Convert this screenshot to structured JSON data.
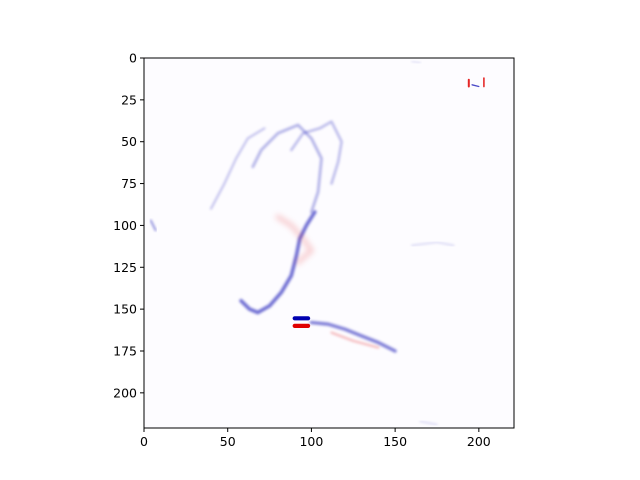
{
  "chart_data": {
    "type": "heatmap",
    "title": "",
    "xlabel": "",
    "ylabel": "",
    "xlim": [
      0,
      221
    ],
    "ylim": [
      221,
      0
    ],
    "colormap": "bwr",
    "colors": {
      "negative": "#0000b0",
      "positive": "#e00000",
      "neutral": "#ffffff",
      "axis": "#000000"
    },
    "x_ticks": [
      {
        "value": 0,
        "label": "0"
      },
      {
        "value": 50,
        "label": "50"
      },
      {
        "value": 100,
        "label": "100"
      },
      {
        "value": 150,
        "label": "150"
      },
      {
        "value": 200,
        "label": "200"
      }
    ],
    "y_ticks": [
      {
        "value": 0,
        "label": "0"
      },
      {
        "value": 25,
        "label": "25"
      },
      {
        "value": 50,
        "label": "50"
      },
      {
        "value": 75,
        "label": "75"
      },
      {
        "value": 100,
        "label": "100"
      },
      {
        "value": 125,
        "label": "125"
      },
      {
        "value": 150,
        "label": "150"
      },
      {
        "value": 175,
        "label": "175"
      },
      {
        "value": 200,
        "label": "200"
      }
    ],
    "features": [
      {
        "name": "strong-negative-patch",
        "sign": "negative",
        "intensity": 1.0,
        "points": [
          [
            90,
            155.5
          ],
          [
            98,
            155.5
          ]
        ],
        "width": 2.5
      },
      {
        "name": "strong-positive-patch",
        "sign": "positive",
        "intensity": 1.0,
        "points": [
          [
            90,
            160
          ],
          [
            98,
            160
          ]
        ],
        "width": 2.5
      },
      {
        "name": "top-right-positive-marks",
        "sign": "positive",
        "intensity": 0.85,
        "points": [
          [
            194,
            13
          ],
          [
            194,
            17
          ]
        ],
        "width": 1.2
      },
      {
        "name": "top-right-positive-marks-2",
        "sign": "positive",
        "intensity": 0.8,
        "points": [
          [
            203,
            12
          ],
          [
            203,
            17
          ]
        ],
        "width": 1.0
      },
      {
        "name": "top-right-blue-speck",
        "sign": "negative",
        "intensity": 0.7,
        "points": [
          [
            196,
            16
          ],
          [
            200,
            17
          ]
        ],
        "width": 0.8
      },
      {
        "name": "curved-blue-stroke",
        "sign": "negative",
        "intensity": 0.55,
        "points": [
          [
            58,
            145
          ],
          [
            63,
            150
          ],
          [
            68,
            152
          ],
          [
            75,
            148
          ],
          [
            82,
            140
          ],
          [
            88,
            130
          ],
          [
            91,
            118
          ],
          [
            93,
            108
          ],
          [
            97,
            100
          ],
          [
            102,
            92
          ]
        ],
        "width": 2.2
      },
      {
        "name": "upper-blue-curves",
        "sign": "negative",
        "intensity": 0.3,
        "points": [
          [
            65,
            65
          ],
          [
            70,
            55
          ],
          [
            80,
            45
          ],
          [
            92,
            40
          ],
          [
            100,
            48
          ],
          [
            106,
            60
          ],
          [
            104,
            80
          ],
          [
            100,
            92
          ]
        ],
        "width": 1.6
      },
      {
        "name": "upper-blue-curves-2",
        "sign": "negative",
        "intensity": 0.28,
        "points": [
          [
            88,
            55
          ],
          [
            95,
            45
          ],
          [
            105,
            42
          ],
          [
            112,
            38
          ],
          [
            118,
            50
          ],
          [
            116,
            62
          ],
          [
            112,
            75
          ]
        ],
        "width": 1.4
      },
      {
        "name": "upper-blue-left-lobe",
        "sign": "negative",
        "intensity": 0.25,
        "points": [
          [
            40,
            90
          ],
          [
            48,
            75
          ],
          [
            55,
            60
          ],
          [
            62,
            48
          ],
          [
            72,
            42
          ]
        ],
        "width": 1.2
      },
      {
        "name": "lower-blue-streak",
        "sign": "negative",
        "intensity": 0.5,
        "points": [
          [
            100,
            158
          ],
          [
            110,
            159
          ],
          [
            120,
            162
          ],
          [
            130,
            166
          ],
          [
            140,
            170
          ],
          [
            150,
            175
          ]
        ],
        "width": 2.0
      },
      {
        "name": "lower-red-streak",
        "sign": "positive",
        "intensity": 0.25,
        "points": [
          [
            112,
            164
          ],
          [
            125,
            169
          ],
          [
            140,
            173
          ]
        ],
        "width": 1.4
      },
      {
        "name": "central-red-haze",
        "sign": "positive",
        "intensity": 0.18,
        "points": [
          [
            80,
            95
          ],
          [
            88,
            100
          ],
          [
            95,
            108
          ],
          [
            100,
            115
          ],
          [
            92,
            122
          ]
        ],
        "width": 3.0
      },
      {
        "name": "left-blue-speck",
        "sign": "negative",
        "intensity": 0.5,
        "points": [
          [
            4,
            97
          ],
          [
            7,
            103
          ]
        ],
        "width": 1.0
      },
      {
        "name": "right-faint-blue",
        "sign": "negative",
        "intensity": 0.15,
        "points": [
          [
            160,
            112
          ],
          [
            175,
            110
          ],
          [
            185,
            112
          ]
        ],
        "width": 1.0
      },
      {
        "name": "bottom-faint-blue",
        "sign": "negative",
        "intensity": 0.15,
        "points": [
          [
            165,
            217
          ],
          [
            175,
            219
          ]
        ],
        "width": 1.0
      },
      {
        "name": "top-faint-blue",
        "sign": "negative",
        "intensity": 0.12,
        "points": [
          [
            160,
            2
          ],
          [
            165,
            3
          ]
        ],
        "width": 1.0
      }
    ]
  }
}
